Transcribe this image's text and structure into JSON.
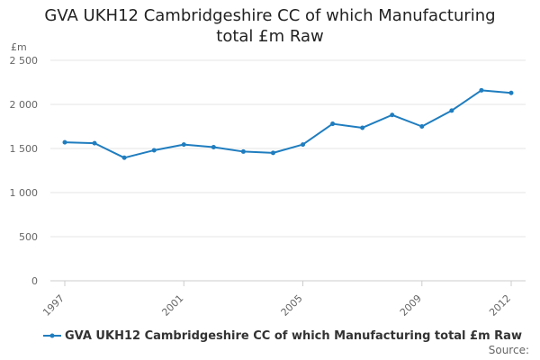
{
  "chart_data": {
    "type": "line",
    "title_lines": [
      "GVA UKH12 Cambridgeshire CC of which Manufacturing",
      "total £m Raw"
    ],
    "ylabel": "£m",
    "xlabel": "",
    "ylim": [
      0,
      2500
    ],
    "yticks": [
      0,
      500,
      1000,
      1500,
      2000,
      2500
    ],
    "ytick_labels": [
      "0",
      "500",
      "1 000",
      "1 500",
      "2 000",
      "2 500"
    ],
    "x": [
      1997,
      1998,
      1999,
      2000,
      2001,
      2002,
      2003,
      2004,
      2005,
      2006,
      2007,
      2008,
      2009,
      2010,
      2011,
      2012
    ],
    "xticks": [
      1997,
      2001,
      2005,
      2009,
      2012
    ],
    "xtick_labels": [
      "1997",
      "2001",
      "2005",
      "2009",
      "2012"
    ],
    "grid": true,
    "legend_position": "bottom-left",
    "series": [
      {
        "name": "GVA UKH12 Cambridgeshire CC of which Manufacturing total £m Raw",
        "color": "#1f7dbf",
        "values": [
          1570,
          1560,
          1395,
          1480,
          1545,
          1515,
          1465,
          1450,
          1545,
          1780,
          1735,
          1880,
          1750,
          1930,
          2160,
          2130
        ]
      }
    ]
  },
  "source_label": "Source:"
}
